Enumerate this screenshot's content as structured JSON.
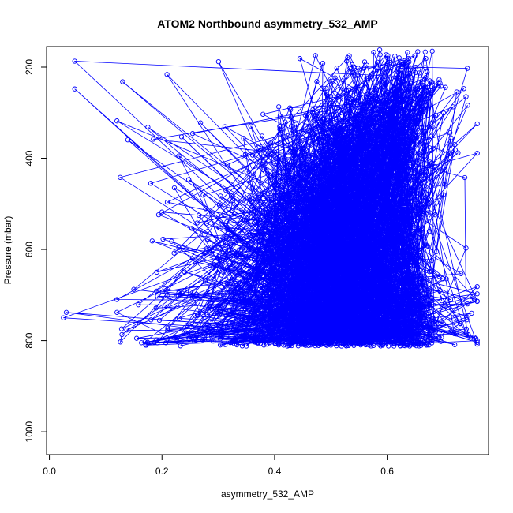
{
  "chart_data": {
    "type": "scatter",
    "title": "ATOM2 Northbound asymmetry_532_AMP",
    "xlabel": "asymmetry_532_AMP",
    "ylabel": "Pressure (mbar)",
    "xlim": [
      -0.005,
      0.78
    ],
    "ylim": [
      1050,
      155
    ],
    "y_reversed": true,
    "x_ticks": [
      0.0,
      0.2,
      0.4,
      0.6
    ],
    "x_tick_labels": [
      "0.0",
      "0.2",
      "0.4",
      "0.6"
    ],
    "y_ticks": [
      200,
      400,
      600,
      800,
      1000
    ],
    "y_tick_labels": [
      "200",
      "400",
      "600",
      "800",
      "1000"
    ],
    "grid": false,
    "legend": "none",
    "series_color": "#0000ff",
    "marker": "open-circle",
    "connected": true,
    "point_count": 2600,
    "pressure_range": [
      160,
      812
    ],
    "asymmetry_range": [
      0.02,
      0.76
    ],
    "series": [
      {
        "name": "",
        "sample_points": [
          {
            "x": 0.045,
            "y": 187
          },
          {
            "x": 0.045,
            "y": 248
          },
          {
            "x": 0.13,
            "y": 232
          },
          {
            "x": 0.12,
            "y": 318
          },
          {
            "x": 0.175,
            "y": 332
          },
          {
            "x": 0.23,
            "y": 395
          },
          {
            "x": 0.18,
            "y": 455
          },
          {
            "x": 0.2,
            "y": 518
          },
          {
            "x": 0.23,
            "y": 596
          },
          {
            "x": 0.03,
            "y": 738
          },
          {
            "x": 0.025,
            "y": 750
          },
          {
            "x": 0.12,
            "y": 738
          },
          {
            "x": 0.155,
            "y": 795
          },
          {
            "x": 0.17,
            "y": 803
          },
          {
            "x": 0.21,
            "y": 700
          },
          {
            "x": 0.35,
            "y": 812
          },
          {
            "x": 0.5,
            "y": 810
          },
          {
            "x": 0.64,
            "y": 812
          },
          {
            "x": 0.67,
            "y": 810
          },
          {
            "x": 0.74,
            "y": 597
          },
          {
            "x": 0.755,
            "y": 710
          },
          {
            "x": 0.75,
            "y": 740
          },
          {
            "x": 0.73,
            "y": 763
          },
          {
            "x": 0.74,
            "y": 265
          },
          {
            "x": 0.7,
            "y": 480
          },
          {
            "x": 0.72,
            "y": 370
          },
          {
            "x": 0.68,
            "y": 165
          }
        ]
      }
    ]
  }
}
